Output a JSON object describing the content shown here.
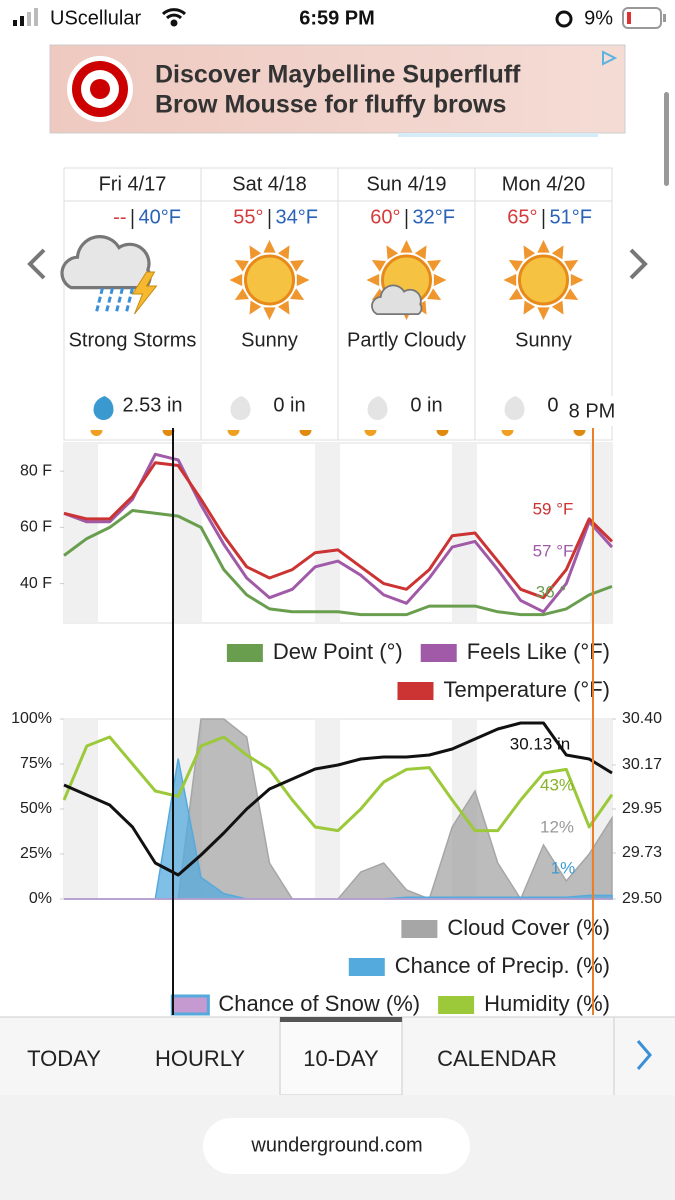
{
  "status_bar": {
    "carrier": "UScellular",
    "time": "6:59 PM",
    "battery": "9%"
  },
  "ad": {
    "line1": "Discover Maybelline Superfluff",
    "line2": "Brow Mousse for fluffy brows"
  },
  "days": [
    {
      "day": "Fri 4/17",
      "high": "--",
      "low": "40°F",
      "condition": "Strong Storms",
      "precip": "2.53 in"
    },
    {
      "day": "Sat 4/18",
      "high": "55°",
      "low": "34°F",
      "condition": "Sunny",
      "precip": "0 in"
    },
    {
      "day": "Sun 4/19",
      "high": "60°",
      "low": "32°F",
      "condition": "Partly Cloudy",
      "precip": "0 in"
    },
    {
      "day": "Mon 4/20",
      "high": "65°",
      "low": "51°F",
      "condition": "Sunny",
      "precip": "0 in"
    }
  ],
  "cursor_label": "8 PM",
  "chart_data": [
    {
      "type": "line",
      "categories": [
        null,
        null,
        null,
        null,
        null,
        null,
        null,
        null,
        null,
        null,
        null,
        null,
        null,
        null,
        null,
        null,
        null,
        null,
        null,
        null,
        null,
        null,
        null,
        null,
        null
      ],
      "ylim": [
        26,
        90
      ],
      "yticks": [
        {
          "value": 40,
          "label": "40 F"
        },
        {
          "value": 60,
          "label": "60 F"
        },
        {
          "value": 80,
          "label": "80 F"
        }
      ],
      "series": [
        {
          "name": "Dew Point (°)",
          "color": "#6a9e4f",
          "values": [
            50,
            56,
            60,
            66,
            65,
            64,
            60,
            45,
            36,
            31,
            30,
            30,
            30,
            29,
            29,
            29,
            32,
            32,
            32,
            30,
            29,
            29,
            31,
            36,
            39
          ]
        },
        {
          "name": "Feels Like (°F)",
          "color": "#a05aa8",
          "values": [
            65,
            62,
            62,
            70,
            86,
            84,
            68,
            54,
            42,
            35,
            38,
            46,
            48,
            43,
            36,
            33,
            42,
            53,
            55,
            45,
            34,
            30,
            40,
            62,
            53
          ]
        },
        {
          "name": "Temperature (°F)",
          "color": "#cc3333",
          "values": [
            65,
            63,
            63,
            71,
            83,
            82,
            70,
            57,
            46,
            42,
            45,
            51,
            52,
            46,
            40,
            38,
            45,
            57,
            58,
            48,
            38,
            35,
            45,
            63,
            55
          ]
        }
      ],
      "annotations": [
        {
          "text": "59 °F",
          "color": "#cc3333"
        },
        {
          "text": "57 °F",
          "color": "#a05aa8"
        },
        {
          "text": "36 °",
          "color": "#6a9e4f"
        }
      ]
    },
    {
      "type": "line",
      "categories": [
        null,
        null,
        null,
        null,
        null,
        null,
        null,
        null,
        null,
        null,
        null,
        null,
        null,
        null,
        null,
        null,
        null,
        null,
        null,
        null,
        null,
        null,
        null,
        null,
        null
      ],
      "ylim": [
        0,
        100
      ],
      "yticks": [
        {
          "value": 0,
          "label": "0%"
        },
        {
          "value": 25,
          "label": "25%"
        },
        {
          "value": 50,
          "label": "50%"
        },
        {
          "value": 75,
          "label": "75%"
        },
        {
          "value": 100,
          "label": "100%"
        }
      ],
      "y2lim": [
        29.5,
        30.4
      ],
      "y2ticks": [
        {
          "value": 29.5,
          "label": "29.50"
        },
        29.73,
        29.95,
        30.17,
        {
          "value": 30.4,
          "label": "30.40"
        }
      ],
      "series": [
        {
          "name": "Cloud Cover (%)",
          "color": "#a6a6a6",
          "area": true,
          "values": [
            0,
            0,
            0,
            0,
            0,
            0,
            100,
            100,
            90,
            20,
            0,
            0,
            0,
            15,
            20,
            5,
            0,
            40,
            60,
            20,
            0,
            30,
            10,
            25,
            45
          ]
        },
        {
          "name": "Chance of Precip. (%)",
          "color": "#55aadd",
          "area": true,
          "values": [
            0,
            0,
            0,
            0,
            0,
            78,
            12,
            3,
            0,
            0,
            0,
            0,
            0,
            0,
            0,
            1,
            1,
            1,
            1,
            1,
            1,
            1,
            1,
            2,
            2
          ]
        },
        {
          "name": "Chance of Snow (%)",
          "color": "#c59ad0",
          "area": true,
          "values": [
            0,
            0,
            0,
            0,
            0,
            0,
            0,
            0,
            0,
            0,
            0,
            0,
            0,
            0,
            0,
            0,
            0,
            0,
            0,
            0,
            0,
            0,
            0,
            0,
            0
          ]
        },
        {
          "name": "Humidity (%)",
          "color": "#9cc93a",
          "values": [
            55,
            85,
            90,
            75,
            60,
            57,
            85,
            90,
            80,
            72,
            55,
            40,
            38,
            50,
            65,
            72,
            73,
            55,
            38,
            38,
            55,
            70,
            72,
            40,
            58
          ]
        },
        {
          "color": "#111111",
          "axis": "y2",
          "values": [
            30.07,
            30.02,
            29.97,
            29.86,
            29.68,
            29.62,
            29.72,
            29.83,
            29.95,
            30.05,
            30.1,
            30.15,
            30.17,
            30.2,
            30.21,
            30.21,
            30.22,
            30.25,
            30.3,
            30.35,
            30.38,
            30.38,
            30.22,
            30.2,
            30.13
          ]
        }
      ],
      "annotations": [
        {
          "text": "30.13 in",
          "color": "#111111"
        },
        {
          "text": "43%",
          "color": "#86b32a"
        },
        {
          "text": "12%",
          "color": "#999999"
        },
        {
          "text": "1%",
          "color": "#3a9ad0"
        }
      ]
    }
  ],
  "tabs": [
    "TODAY",
    "HOURLY",
    "10-DAY",
    "CALENDAR"
  ],
  "url": "wunderground.com"
}
